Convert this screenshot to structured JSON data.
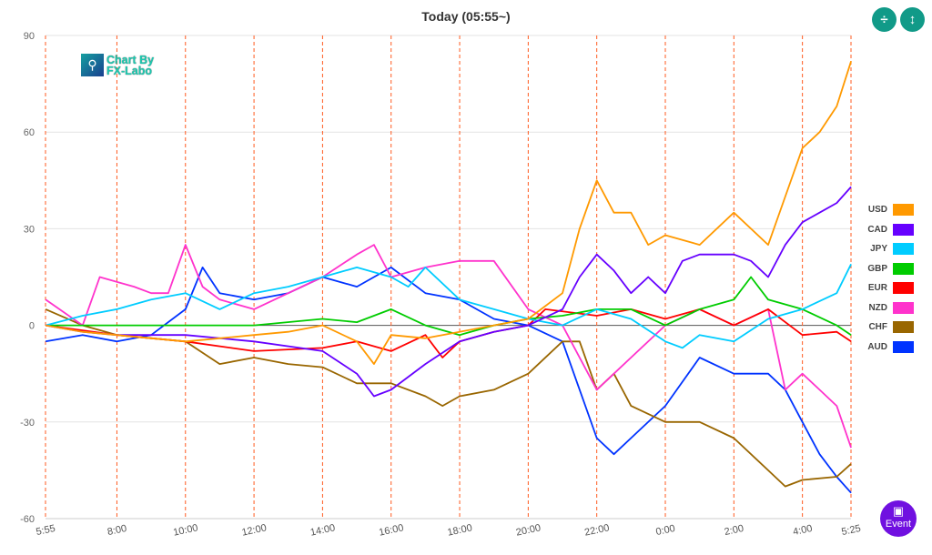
{
  "title": "Today  (05:55~)",
  "buttons": {
    "collapse_icon": "compress-vertical-icon",
    "expand_icon": "expand-vertical-icon",
    "event_label": "Event"
  },
  "logo": {
    "line1": "Chart By",
    "line2": "FX-Labo"
  },
  "chart_data": {
    "type": "line",
    "title": "Today  (05:55~)",
    "xlabel": "",
    "ylabel": "",
    "ylim": [
      -60,
      90
    ],
    "xlim": [
      5.917,
      29.417
    ],
    "yticks": [
      90,
      60,
      30,
      0,
      -30,
      -60
    ],
    "xticks": [
      {
        "v": 5.917,
        "label": "5:55"
      },
      {
        "v": 8,
        "label": "8:00"
      },
      {
        "v": 10,
        "label": "10:00"
      },
      {
        "v": 12,
        "label": "12:00"
      },
      {
        "v": 14,
        "label": "14:00"
      },
      {
        "v": 16,
        "label": "16:00"
      },
      {
        "v": 18,
        "label": "18:00"
      },
      {
        "v": 20,
        "label": "20:00"
      },
      {
        "v": 22,
        "label": "22:00"
      },
      {
        "v": 24,
        "label": "0:00"
      },
      {
        "v": 26,
        "label": "2:00"
      },
      {
        "v": 28,
        "label": "4:00"
      },
      {
        "v": 29.417,
        "label": "5:25"
      }
    ],
    "legend_position": "right",
    "series": [
      {
        "name": "USD",
        "color": "#ff9900",
        "x": [
          5.92,
          7,
          8,
          9,
          10,
          11,
          12,
          13,
          14,
          15,
          15.5,
          16,
          17,
          18,
          19,
          20,
          21,
          21.5,
          22,
          22.5,
          23,
          23.5,
          24,
          25,
          26,
          27,
          27.5,
          28,
          28.5,
          29,
          29.42
        ],
        "y": [
          0,
          -2,
          -3,
          -4,
          -5,
          -4,
          -3,
          -2,
          0,
          -5,
          -12,
          -3,
          -4,
          -2,
          0,
          2,
          10,
          30,
          45,
          35,
          35,
          25,
          28,
          25,
          35,
          25,
          40,
          55,
          60,
          68,
          82
        ]
      },
      {
        "name": "CAD",
        "color": "#6600ff",
        "x": [
          5.92,
          7,
          8,
          10,
          12,
          14,
          15,
          15.5,
          16,
          17,
          18,
          19,
          20,
          21,
          21.5,
          22,
          22.5,
          23,
          23.5,
          24,
          24.5,
          25,
          26,
          26.5,
          27,
          27.5,
          28,
          28.5,
          29,
          29.42
        ],
        "y": [
          0,
          -2,
          -3,
          -3,
          -5,
          -8,
          -15,
          -22,
          -20,
          -12,
          -5,
          -2,
          0,
          5,
          15,
          22,
          17,
          10,
          15,
          10,
          20,
          22,
          22,
          20,
          15,
          25,
          32,
          35,
          38,
          43
        ]
      },
      {
        "name": "JPY",
        "color": "#00ccff",
        "x": [
          5.92,
          7,
          8,
          9,
          10,
          11,
          12,
          13,
          14,
          15,
          16,
          16.5,
          17,
          18,
          19,
          20,
          21,
          22,
          23,
          24,
          24.5,
          25,
          26,
          27,
          28,
          29,
          29.42
        ],
        "y": [
          0,
          3,
          5,
          8,
          10,
          5,
          10,
          12,
          15,
          18,
          15,
          12,
          18,
          8,
          5,
          2,
          0,
          5,
          2,
          -5,
          -7,
          -3,
          -5,
          2,
          5,
          10,
          19
        ]
      },
      {
        "name": "GBP",
        "color": "#00cc00",
        "x": [
          5.92,
          8,
          10,
          12,
          14,
          15,
          16,
          17,
          18,
          19,
          20,
          21,
          22,
          23,
          24,
          25,
          26,
          26.5,
          27,
          28,
          29,
          29.42
        ],
        "y": [
          0,
          0,
          0,
          0,
          2,
          1,
          5,
          0,
          -3,
          0,
          2,
          3,
          5,
          5,
          0,
          5,
          8,
          15,
          8,
          5,
          0,
          -3
        ]
      },
      {
        "name": "EUR",
        "color": "#ff0000",
        "x": [
          5.92,
          8,
          10,
          12,
          14,
          15,
          16,
          17,
          17.5,
          18,
          19,
          20,
          20.5,
          22,
          23,
          24,
          25,
          26,
          27,
          28,
          29,
          29.42
        ],
        "y": [
          0,
          -3,
          -5,
          -8,
          -7,
          -5,
          -8,
          -3,
          -10,
          -5,
          -2,
          0,
          5,
          3,
          5,
          2,
          5,
          0,
          5,
          -3,
          -2,
          -5
        ]
      },
      {
        "name": "NZD",
        "color": "#ff33cc",
        "x": [
          5.92,
          7,
          7.5,
          8.5,
          9,
          9.5,
          10,
          10.5,
          11,
          12,
          13,
          14,
          15,
          15.5,
          16,
          17,
          18,
          19,
          20,
          21,
          22,
          22.5,
          23,
          24,
          25,
          26,
          27,
          27.5,
          28,
          28.5,
          29,
          29.42
        ],
        "y": [
          8,
          0,
          15,
          12,
          10,
          10,
          25,
          12,
          8,
          5,
          10,
          15,
          22,
          25,
          15,
          18,
          20,
          20,
          5,
          0,
          -20,
          -15,
          -10,
          0,
          5,
          0,
          5,
          -20,
          -15,
          -20,
          -25,
          -38
        ]
      },
      {
        "name": "CHF",
        "color": "#996600",
        "x": [
          5.92,
          7,
          8,
          10,
          11,
          12,
          13,
          14,
          15,
          16,
          17,
          17.5,
          18,
          19,
          20,
          21,
          21.5,
          22,
          22.5,
          23,
          24,
          25,
          26,
          27,
          27.5,
          28,
          29,
          29.42
        ],
        "y": [
          5,
          0,
          -3,
          -5,
          -12,
          -10,
          -12,
          -13,
          -18,
          -18,
          -22,
          -25,
          -22,
          -20,
          -15,
          -5,
          -5,
          -20,
          -15,
          -25,
          -30,
          -30,
          -35,
          -45,
          -50,
          -48,
          -47,
          -43
        ]
      },
      {
        "name": "AUD",
        "color": "#0033ff",
        "x": [
          5.92,
          7,
          8,
          9,
          10,
          10.5,
          11,
          12,
          13,
          14,
          15,
          16,
          17,
          18,
          19,
          20,
          21,
          22,
          22.5,
          23,
          24,
          25,
          26,
          27,
          27.5,
          28,
          28.5,
          29,
          29.42
        ],
        "y": [
          -5,
          -3,
          -5,
          -3,
          5,
          18,
          10,
          8,
          10,
          15,
          12,
          18,
          10,
          8,
          2,
          0,
          -5,
          -35,
          -40,
          -35,
          -25,
          -10,
          -15,
          -15,
          -20,
          -30,
          -40,
          -47,
          -52
        ]
      }
    ]
  }
}
